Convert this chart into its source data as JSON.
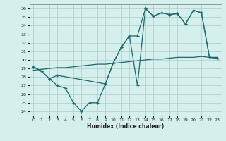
{
  "xlabel": "Humidex (Indice chaleur)",
  "xlim": [
    -0.5,
    23.5
  ],
  "ylim": [
    23.5,
    36.5
  ],
  "xticks": [
    0,
    1,
    2,
    3,
    4,
    5,
    6,
    7,
    8,
    9,
    10,
    11,
    12,
    13,
    14,
    15,
    16,
    17,
    18,
    19,
    20,
    21,
    22,
    23
  ],
  "yticks": [
    24,
    25,
    26,
    27,
    28,
    29,
    30,
    31,
    32,
    33,
    34,
    35,
    36
  ],
  "background_color": "#d5efed",
  "grid_color": "#aacfcd",
  "line_color": "#1a6b6b",
  "line1_x": [
    0,
    1,
    2,
    3,
    4,
    5,
    6,
    7,
    8,
    9,
    10,
    11,
    12,
    13,
    14,
    15,
    16,
    17,
    18,
    19,
    20,
    21,
    22,
    23
  ],
  "line1_y": [
    29.2,
    28.7,
    27.8,
    27.0,
    26.7,
    25.0,
    24.0,
    25.0,
    25.0,
    27.2,
    29.7,
    31.5,
    32.8,
    27.0,
    36.0,
    35.1,
    35.5,
    35.3,
    35.4,
    34.2,
    35.8,
    35.5,
    30.3,
    30.2
  ],
  "line2_x": [
    0,
    1,
    2,
    3,
    4,
    5,
    6,
    7,
    8,
    9,
    10,
    11,
    12,
    13,
    14,
    15,
    16,
    17,
    18,
    19,
    20,
    21,
    22,
    23
  ],
  "line2_y": [
    28.8,
    28.9,
    29.0,
    29.1,
    29.1,
    29.2,
    29.3,
    29.4,
    29.5,
    29.5,
    29.6,
    29.7,
    29.8,
    29.9,
    30.0,
    30.1,
    30.1,
    30.2,
    30.3,
    30.3,
    30.3,
    30.4,
    30.3,
    30.3
  ],
  "line3_x": [
    0,
    1,
    2,
    3,
    9,
    10,
    11,
    12,
    13,
    14,
    15,
    16,
    17,
    18,
    19,
    20,
    21,
    22,
    23
  ],
  "line3_y": [
    29.2,
    28.7,
    27.8,
    28.2,
    27.2,
    29.7,
    31.5,
    32.8,
    32.8,
    36.0,
    35.1,
    35.5,
    35.3,
    35.4,
    34.2,
    35.8,
    35.5,
    30.3,
    30.2
  ]
}
